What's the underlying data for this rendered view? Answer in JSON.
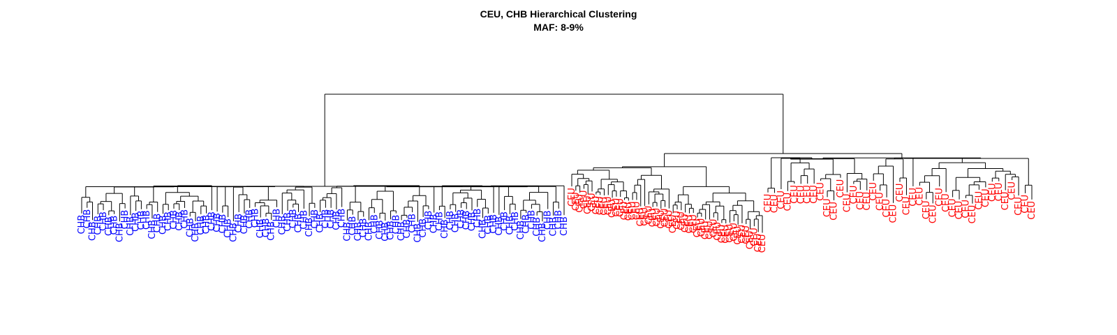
{
  "chart_data": {
    "type": "dendrogram",
    "title": "CEU, CHB Hierarchical Clustering",
    "subtitle": "MAF: 8-9%",
    "groups": [
      {
        "name": "CHB",
        "color": "#0000ff",
        "leaf_count": 90
      },
      {
        "name": "CEU",
        "color": "#ff0000",
        "leaf_count": 89
      }
    ],
    "leaf_label_CHB": "CHB",
    "leaf_label_CEU": "CEU"
  }
}
